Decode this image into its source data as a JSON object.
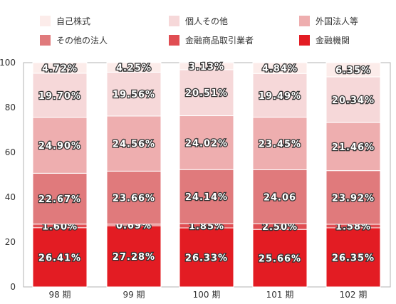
{
  "chart_data": {
    "type": "bar",
    "stacked": true,
    "categories": [
      "98 期",
      "99 期",
      "100 期",
      "101 期",
      "102 期"
    ],
    "ylim": [
      0,
      100
    ],
    "yticks": [
      "0",
      "20",
      "40",
      "60",
      "80",
      "100"
    ],
    "grid": false,
    "legend_placement": "top",
    "series": [
      {
        "name": "金融機関",
        "color": "#e31c23",
        "values": [
          26.41,
          27.28,
          26.33,
          25.66,
          26.35
        ],
        "labels": [
          "26.41%",
          "27.28%",
          "26.33%",
          "25.66%",
          "26.35%"
        ]
      },
      {
        "name": "金融商品取引業者",
        "color": "#e04d52",
        "values": [
          1.6,
          0.69,
          1.85,
          2.5,
          1.58
        ],
        "labels": [
          "1.60%",
          "0.69%",
          "1.85%",
          "2.50%",
          "1.58%"
        ]
      },
      {
        "name": "その他の法人",
        "color": "#e07a7c",
        "values": [
          22.67,
          23.66,
          24.14,
          24.06,
          23.92
        ],
        "labels": [
          "22.67%",
          "23.66%",
          "24.14%",
          "24.06",
          "23.92%"
        ]
      },
      {
        "name": "外国法人等",
        "color": "#eeaeaf",
        "values": [
          24.9,
          24.56,
          24.02,
          23.45,
          21.46
        ],
        "labels": [
          "24.90%",
          "24.56%",
          "24.02%",
          "23.45%",
          "21.46%"
        ]
      },
      {
        "name": "個人その他",
        "color": "#f6d8d9",
        "values": [
          19.7,
          19.56,
          20.51,
          19.49,
          20.34
        ],
        "labels": [
          "19.70%",
          "19.56%",
          "20.51%",
          "19.49%",
          "20.34%"
        ]
      },
      {
        "name": "自己株式",
        "color": "#fcecea",
        "values": [
          4.72,
          4.25,
          3.13,
          4.84,
          6.35
        ],
        "labels": [
          "4.72%",
          "4.25%",
          "3.13%",
          "4.84%",
          "6.35%"
        ]
      }
    ],
    "legend_order": [
      "自己株式",
      "個人その他",
      "外国法人等",
      "その他の法人",
      "金融商品取引業者",
      "金融機関"
    ]
  }
}
